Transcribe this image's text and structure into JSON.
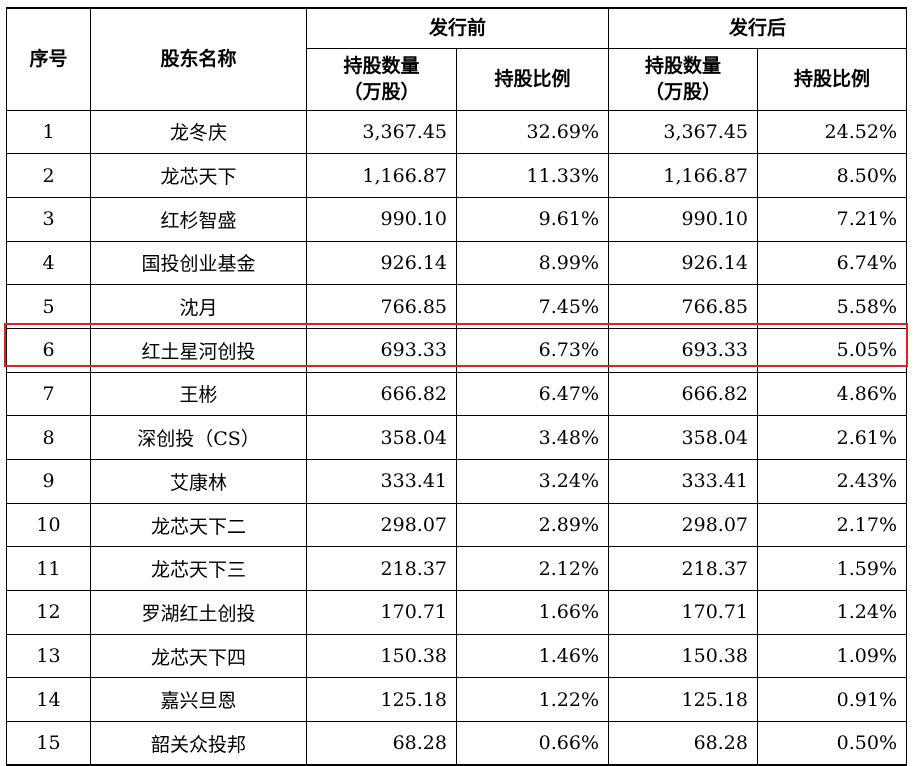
{
  "header": {
    "seq": "序号",
    "name": "股东名称",
    "before": "发行前",
    "after": "发行后",
    "shares_line1": "持股数量",
    "shares_line2": "（万股）",
    "ratio": "持股比例"
  },
  "rows": [
    {
      "no": "1",
      "name": "龙冬庆",
      "before_shares": "3,367.45",
      "before_ratio": "32.69%",
      "after_shares": "3,367.45",
      "after_ratio": "24.52%"
    },
    {
      "no": "2",
      "name": "龙芯天下",
      "before_shares": "1,166.87",
      "before_ratio": "11.33%",
      "after_shares": "1,166.87",
      "after_ratio": "8.50%"
    },
    {
      "no": "3",
      "name": "红杉智盛",
      "before_shares": "990.10",
      "before_ratio": "9.61%",
      "after_shares": "990.10",
      "after_ratio": "7.21%"
    },
    {
      "no": "4",
      "name": "国投创业基金",
      "before_shares": "926.14",
      "before_ratio": "8.99%",
      "after_shares": "926.14",
      "after_ratio": "6.74%"
    },
    {
      "no": "5",
      "name": "沈月",
      "before_shares": "766.85",
      "before_ratio": "7.45%",
      "after_shares": "766.85",
      "after_ratio": "5.58%"
    },
    {
      "no": "6",
      "name": "红土星河创投",
      "before_shares": "693.33",
      "before_ratio": "6.73%",
      "after_shares": "693.33",
      "after_ratio": "5.05%"
    },
    {
      "no": "7",
      "name": "王彬",
      "before_shares": "666.82",
      "before_ratio": "6.47%",
      "after_shares": "666.82",
      "after_ratio": "4.86%"
    },
    {
      "no": "8",
      "name": "深创投（CS）",
      "before_shares": "358.04",
      "before_ratio": "3.48%",
      "after_shares": "358.04",
      "after_ratio": "2.61%"
    },
    {
      "no": "9",
      "name": "艾康林",
      "before_shares": "333.41",
      "before_ratio": "3.24%",
      "after_shares": "333.41",
      "after_ratio": "2.43%"
    },
    {
      "no": "10",
      "name": "龙芯天下二",
      "before_shares": "298.07",
      "before_ratio": "2.89%",
      "after_shares": "298.07",
      "after_ratio": "2.17%"
    },
    {
      "no": "11",
      "name": "龙芯天下三",
      "before_shares": "218.37",
      "before_ratio": "2.12%",
      "after_shares": "218.37",
      "after_ratio": "1.59%"
    },
    {
      "no": "12",
      "name": "罗湖红土创投",
      "before_shares": "170.71",
      "before_ratio": "1.66%",
      "after_shares": "170.71",
      "after_ratio": "1.24%"
    },
    {
      "no": "13",
      "name": "龙芯天下四",
      "before_shares": "150.38",
      "before_ratio": "1.46%",
      "after_shares": "150.38",
      "after_ratio": "1.09%"
    },
    {
      "no": "14",
      "name": "嘉兴旦恩",
      "before_shares": "125.18",
      "before_ratio": "1.22%",
      "after_shares": "125.18",
      "after_ratio": "0.91%"
    },
    {
      "no": "15",
      "name": "韶关众投邦",
      "before_shares": "68.28",
      "before_ratio": "0.66%",
      "after_shares": "68.28",
      "after_ratio": "0.50%"
    }
  ],
  "highlight_color": "#e02020"
}
